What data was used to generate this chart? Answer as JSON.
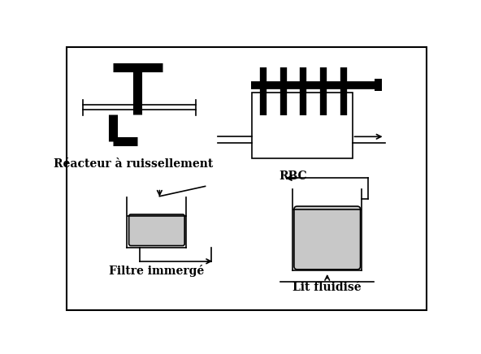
{
  "bg_color": "#ffffff",
  "border_color": "#000000",
  "gray_fill": "#c8c8c8",
  "black": "#000000",
  "labels": {
    "reacteur": "Réacteur à ruissellement",
    "rbc": "RBC",
    "filtre": "Filtre immergé",
    "lit": "Lit fluidisé"
  },
  "label_fontsize": 10,
  "label_fontweight": "bold"
}
